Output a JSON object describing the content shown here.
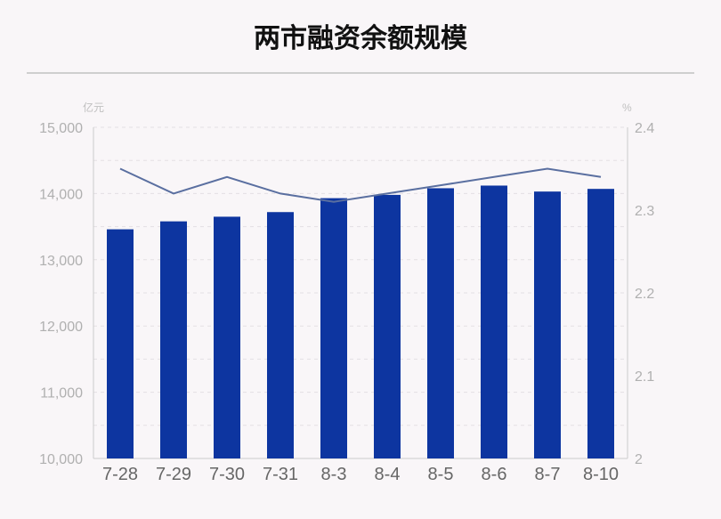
{
  "chart_data": {
    "type": "bar",
    "title": "两市融资余额规模",
    "left_axis_unit": "亿元",
    "right_axis_unit": "%",
    "categories": [
      "7-28",
      "7-29",
      "7-30",
      "7-31",
      "8-3",
      "8-4",
      "8-5",
      "8-6",
      "8-7",
      "8-10"
    ],
    "series": [
      {
        "type": "bar",
        "axis": "left",
        "values": [
          13460,
          13580,
          13650,
          13720,
          13930,
          13980,
          14080,
          14120,
          14030,
          14070
        ]
      },
      {
        "type": "line",
        "axis": "right",
        "values": [
          2.35,
          2.32,
          2.34,
          2.32,
          2.31,
          2.32,
          2.33,
          2.34,
          2.35,
          2.34
        ]
      }
    ],
    "ylim_left": [
      10000,
      15000
    ],
    "ylim_right": [
      2,
      2.4
    ],
    "left_ticks": [
      "10,000",
      "11,000",
      "12,000",
      "13,000",
      "14,000",
      "15,000"
    ],
    "right_ticks": [
      "2",
      "2.1",
      "2.2",
      "2.3",
      "2.4"
    ],
    "grid": true,
    "colors": {
      "bar": "#0d35a0",
      "line": "#5a6fa0",
      "axis_text": "#b0b0b0",
      "category_text": "#666666"
    }
  }
}
